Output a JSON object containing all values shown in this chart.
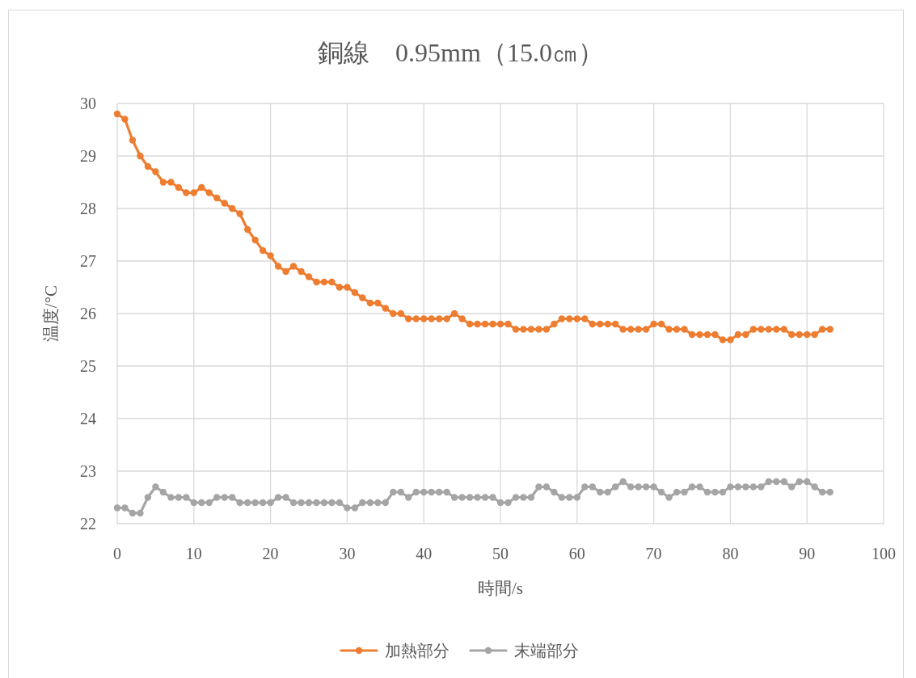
{
  "chart_data": {
    "type": "line",
    "title": "銅線　0.95mm（15.0㎝）",
    "xlabel": "時間/s",
    "ylabel": "温度/°C",
    "x": [
      0,
      1,
      2,
      3,
      4,
      5,
      6,
      7,
      8,
      9,
      10,
      11,
      12,
      13,
      14,
      15,
      16,
      17,
      18,
      19,
      20,
      21,
      22,
      23,
      24,
      25,
      26,
      27,
      28,
      29,
      30,
      31,
      32,
      33,
      34,
      35,
      36,
      37,
      38,
      39,
      40,
      41,
      42,
      43,
      44,
      45,
      46,
      47,
      48,
      49,
      50,
      51,
      52,
      53,
      54,
      55,
      56,
      57,
      58,
      59,
      60,
      61,
      62,
      63,
      64,
      65,
      66,
      67,
      68,
      69,
      70,
      71,
      72,
      73,
      74,
      75,
      76,
      77,
      78,
      79,
      80,
      81,
      82,
      83,
      84,
      85,
      86,
      87,
      88,
      89,
      90,
      91,
      92,
      93
    ],
    "series": [
      {
        "name": "加熱部分",
        "color": "#ed7d31",
        "values": [
          29.8,
          29.7,
          29.3,
          29.0,
          28.8,
          28.7,
          28.5,
          28.5,
          28.4,
          28.3,
          28.3,
          28.4,
          28.3,
          28.2,
          28.1,
          28.0,
          27.9,
          27.6,
          27.4,
          27.2,
          27.1,
          26.9,
          26.8,
          26.9,
          26.8,
          26.7,
          26.6,
          26.6,
          26.6,
          26.5,
          26.5,
          26.4,
          26.3,
          26.2,
          26.2,
          26.1,
          26.0,
          26.0,
          25.9,
          25.9,
          25.9,
          25.9,
          25.9,
          25.9,
          26.0,
          25.9,
          25.8,
          25.8,
          25.8,
          25.8,
          25.8,
          25.8,
          25.7,
          25.7,
          25.7,
          25.7,
          25.7,
          25.8,
          25.9,
          25.9,
          25.9,
          25.9,
          25.8,
          25.8,
          25.8,
          25.8,
          25.7,
          25.7,
          25.7,
          25.7,
          25.8,
          25.8,
          25.7,
          25.7,
          25.7,
          25.6,
          25.6,
          25.6,
          25.6,
          25.5,
          25.5,
          25.6,
          25.6,
          25.7,
          25.7,
          25.7,
          25.7,
          25.7,
          25.6,
          25.6,
          25.6,
          25.6,
          25.7,
          25.7
        ]
      },
      {
        "name": "末端部分",
        "color": "#a5a5a5",
        "values": [
          22.3,
          22.3,
          22.2,
          22.2,
          22.5,
          22.7,
          22.6,
          22.5,
          22.5,
          22.5,
          22.4,
          22.4,
          22.4,
          22.5,
          22.5,
          22.5,
          22.4,
          22.4,
          22.4,
          22.4,
          22.4,
          22.5,
          22.5,
          22.4,
          22.4,
          22.4,
          22.4,
          22.4,
          22.4,
          22.4,
          22.3,
          22.3,
          22.4,
          22.4,
          22.4,
          22.4,
          22.6,
          22.6,
          22.5,
          22.6,
          22.6,
          22.6,
          22.6,
          22.6,
          22.5,
          22.5,
          22.5,
          22.5,
          22.5,
          22.5,
          22.4,
          22.4,
          22.5,
          22.5,
          22.5,
          22.7,
          22.7,
          22.6,
          22.5,
          22.5,
          22.5,
          22.7,
          22.7,
          22.6,
          22.6,
          22.7,
          22.8,
          22.7,
          22.7,
          22.7,
          22.7,
          22.6,
          22.5,
          22.6,
          22.6,
          22.7,
          22.7,
          22.6,
          22.6,
          22.6,
          22.7,
          22.7,
          22.7,
          22.7,
          22.7,
          22.8,
          22.8,
          22.8,
          22.7,
          22.8,
          22.8,
          22.7,
          22.6,
          22.6
        ]
      }
    ],
    "xlim": [
      0,
      100
    ],
    "ylim": [
      22,
      30
    ],
    "xticks": [
      0,
      10,
      20,
      30,
      40,
      50,
      60,
      70,
      80,
      90,
      100
    ],
    "yticks": [
      22,
      23,
      24,
      25,
      26,
      27,
      28,
      29,
      30
    ],
    "grid": true,
    "legend": "bottom",
    "marker": "circle",
    "line_style": "solid"
  }
}
